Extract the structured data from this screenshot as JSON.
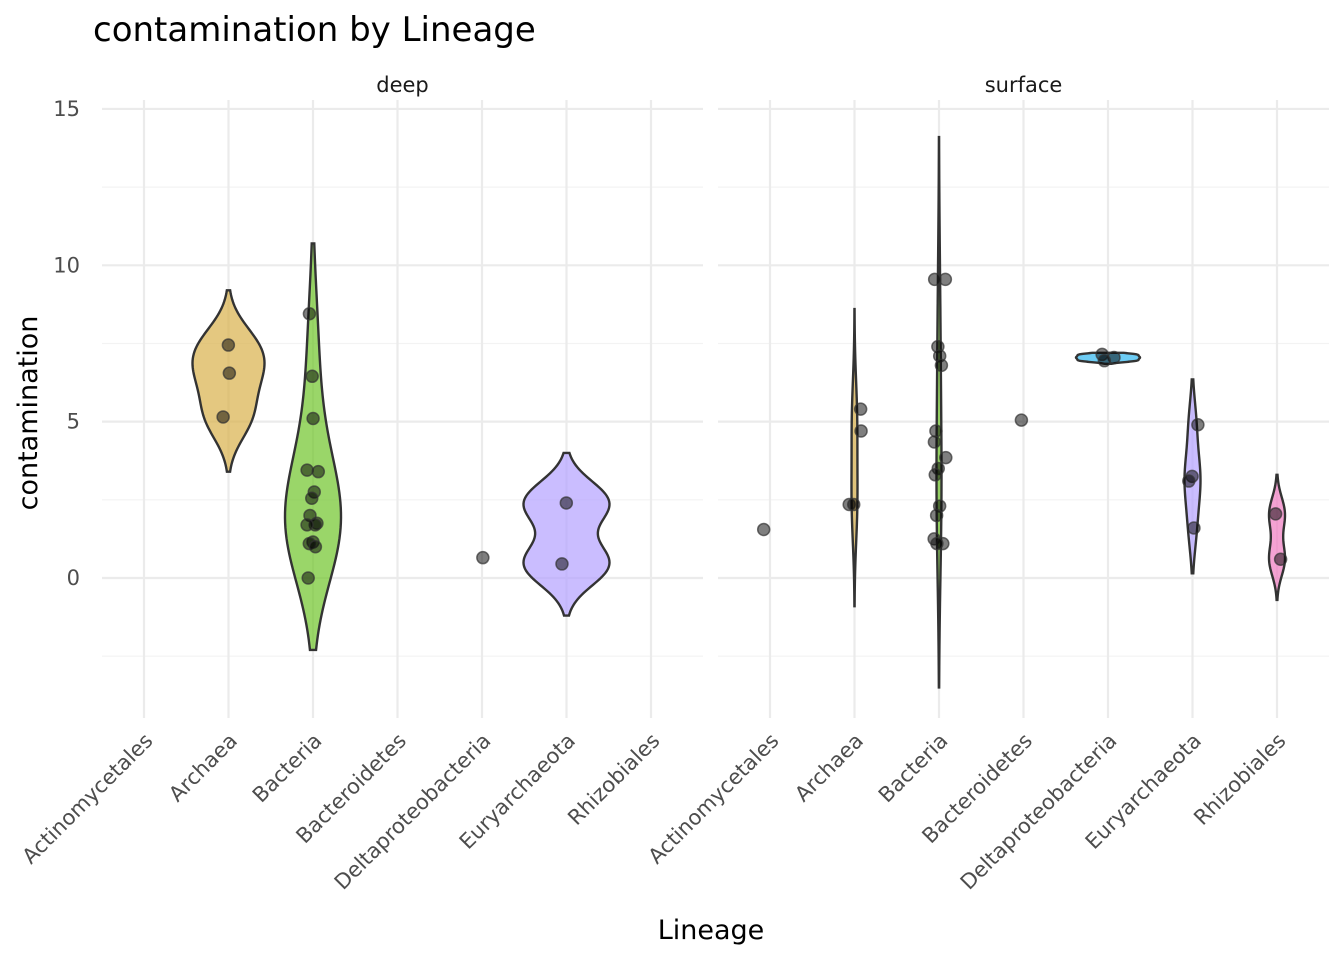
{
  "chart_data": {
    "type": "violin",
    "title": "contamination by Lineage",
    "xlabel": "Lineage",
    "ylabel": "contamination",
    "ylim": [
      -4.3,
      15.5
    ],
    "yticks": [
      0,
      5,
      10,
      15
    ],
    "categories": [
      "Actinomycetales",
      "Archaea",
      "Bacteria",
      "Bacteroidetes",
      "Deltaproteobacteria",
      "Euryarchaeota",
      "Rhizobiales"
    ],
    "colors": {
      "Archaea": "#d8b04a",
      "Bacteria": "#6fc52a",
      "Deltaproteobacteria": "#2fb6f0",
      "Euryarchaeota": "#b4a1ff",
      "Rhizobiales": "#f07ac0"
    },
    "grid": true,
    "legend": "none",
    "facets": [
      {
        "name": "deep",
        "violins": [
          {
            "category": "Archaea",
            "ymin": 3.4,
            "ymax": 9.2,
            "points": [
              7.45,
              6.55,
              5.15
            ]
          },
          {
            "category": "Bacteria",
            "ymin": -2.3,
            "ymax": 10.7,
            "points": [
              8.45,
              6.45,
              5.1,
              3.45,
              3.4,
              2.75,
              2.55,
              2.0,
              1.75,
              1.7,
              1.7,
              1.15,
              1.1,
              1.0,
              0.0
            ]
          },
          {
            "category": "Deltaproteobacteria",
            "ymin": null,
            "ymax": null,
            "points": [
              0.65
            ]
          },
          {
            "category": "Euryarchaeota",
            "ymin": -1.2,
            "ymax": 4.0,
            "points": [
              2.4,
              0.45
            ]
          }
        ]
      },
      {
        "name": "surface",
        "violins": [
          {
            "category": "Actinomycetales",
            "ymin": null,
            "ymax": null,
            "points": [
              1.55
            ]
          },
          {
            "category": "Archaea",
            "ymin": -0.9,
            "ymax": 8.6,
            "points": [
              5.4,
              4.7,
              2.35,
              2.35
            ]
          },
          {
            "category": "Bacteria",
            "ymin": -3.5,
            "ymax": 14.1,
            "points": [
              9.55,
              9.55,
              7.4,
              7.1,
              6.8,
              4.7,
              4.35,
              3.85,
              3.5,
              3.3,
              2.3,
              2.0,
              1.25,
              1.1,
              1.1
            ]
          },
          {
            "category": "Bacteroidetes",
            "ymin": null,
            "ymax": null,
            "points": [
              5.05
            ]
          },
          {
            "category": "Deltaproteobacteria",
            "ymin": 6.85,
            "ymax": 7.2,
            "points": [
              7.15,
              7.05,
              6.95
            ]
          },
          {
            "category": "Euryarchaeota",
            "ymin": 0.15,
            "ymax": 6.35,
            "points": [
              4.9,
              3.25,
              3.1,
              1.6
            ]
          },
          {
            "category": "Rhizobiales",
            "ymin": -0.7,
            "ymax": 3.3,
            "points": [
              2.05,
              0.6
            ]
          }
        ]
      }
    ]
  }
}
